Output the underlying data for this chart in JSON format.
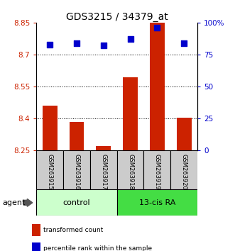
{
  "title": "GDS3215 / 34379_at",
  "samples": [
    "GSM263915",
    "GSM263916",
    "GSM263917",
    "GSM263918",
    "GSM263919",
    "GSM263920"
  ],
  "bar_values": [
    8.46,
    8.385,
    8.27,
    8.595,
    8.87,
    8.405
  ],
  "bar_baseline": 8.25,
  "percentile_values": [
    83,
    84,
    82,
    87,
    96,
    84
  ],
  "ylim_left": [
    8.25,
    8.85
  ],
  "ylim_right": [
    0,
    100
  ],
  "yticks_left": [
    8.25,
    8.4,
    8.55,
    8.7,
    8.85
  ],
  "ytick_labels_left": [
    "8.25",
    "8.4",
    "8.55",
    "8.7",
    "8.85"
  ],
  "yticks_right": [
    0,
    25,
    50,
    75,
    100
  ],
  "ytick_labels_right": [
    "0",
    "25",
    "50",
    "75",
    "100%"
  ],
  "hlines": [
    8.4,
    8.55,
    8.7
  ],
  "bar_color": "#cc2200",
  "dot_color": "#0000cc",
  "control_label": "control",
  "treatment_label": "13-cis RA",
  "agent_label": "agent",
  "control_bg": "#ccffcc",
  "treatment_bg": "#44dd44",
  "sample_box_bg": "#cccccc",
  "legend_red_label": "transformed count",
  "legend_blue_label": "percentile rank within the sample",
  "bar_width": 0.55,
  "dot_size": 30,
  "title_fontsize": 10,
  "ytick_fontsize": 7.5,
  "sample_fontsize": 6.0,
  "condition_fontsize": 8,
  "legend_fontsize": 6.5
}
